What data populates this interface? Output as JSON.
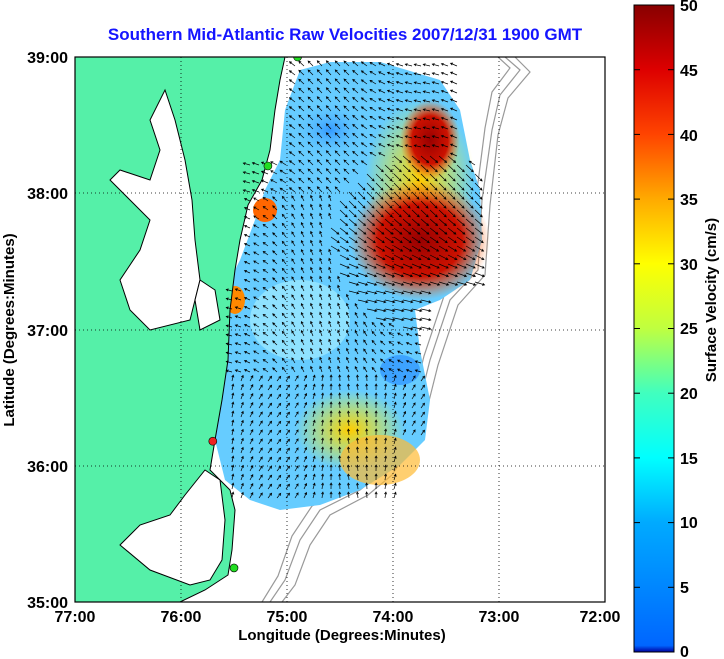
{
  "title": "Southern Mid-Atlantic Raw Velocities 2007/12/31 1900 GMT",
  "x_axis": {
    "label": "Longitude (Degrees:Minutes)",
    "ticks": [
      "77:00",
      "76:00",
      "75:00",
      "74:00",
      "73:00",
      "72:00"
    ],
    "range": [
      -77,
      -72
    ]
  },
  "y_axis": {
    "label": "Latitude (Degrees:Minutes)",
    "ticks": [
      "39:00",
      "38:00",
      "37:00",
      "36:00",
      "35:00"
    ],
    "range": [
      35,
      39
    ]
  },
  "colorbar": {
    "label": "Surface Velocity (cm/s)",
    "ticks": [
      "50",
      "45",
      "40",
      "35",
      "30",
      "25",
      "20",
      "15",
      "10",
      "5",
      "0"
    ],
    "range": [
      0,
      50
    ],
    "colormap": "jet"
  },
  "colors": {
    "land": "#55f0a8",
    "water": "#ffffff",
    "coast_line": "#000000",
    "bathymetry": "#999999",
    "grid": "#000000",
    "title": "#1515ff"
  },
  "stations": [
    {
      "color": "#22dd22",
      "lon": -74.9,
      "lat": 39.0
    },
    {
      "color": "#22dd22",
      "lon": -75.18,
      "lat": 38.2
    },
    {
      "color": "#ee2222",
      "lon": -75.7,
      "lat": 36.18
    },
    {
      "color": "#22dd22",
      "lon": -75.5,
      "lat": 35.25
    }
  ],
  "grid": true
}
